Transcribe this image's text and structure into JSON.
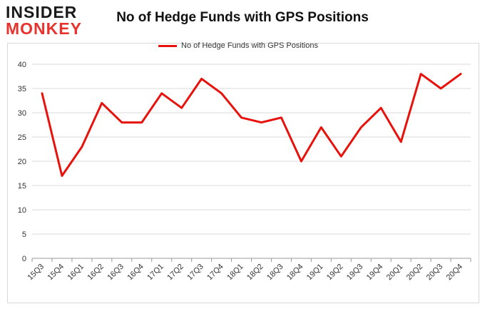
{
  "logo": {
    "line1": "INSIDER",
    "line2": "MONKEY"
  },
  "colors": {
    "series": "#e8120c",
    "grid": "#d9d9d9",
    "axis": "#999999",
    "logo_dark": "#1a1a1a",
    "logo_red": "#e8322e"
  },
  "chart_data": {
    "type": "line",
    "title": "No of Hedge Funds with GPS Positions",
    "xlabel": "",
    "ylabel": "",
    "ylim": [
      0,
      40
    ],
    "yticks": [
      0,
      5,
      10,
      15,
      20,
      25,
      30,
      35,
      40
    ],
    "grid": true,
    "legend_position": "top-center",
    "categories": [
      "15Q3",
      "15Q4",
      "16Q1",
      "16Q2",
      "16Q3",
      "16Q4",
      "17Q1",
      "17Q2",
      "17Q3",
      "17Q4",
      "18Q1",
      "18Q2",
      "18Q3",
      "18Q4",
      "19Q1",
      "19Q2",
      "19Q3",
      "19Q4",
      "20Q1",
      "20Q2",
      "20Q3",
      "20Q4"
    ],
    "series": [
      {
        "name": "No of Hedge Funds with GPS Positions",
        "values": [
          34,
          17,
          23,
          32,
          28,
          28,
          34,
          31,
          37,
          34,
          29,
          28,
          29,
          20,
          27,
          21,
          27,
          31,
          24,
          38,
          35,
          38
        ]
      }
    ]
  }
}
